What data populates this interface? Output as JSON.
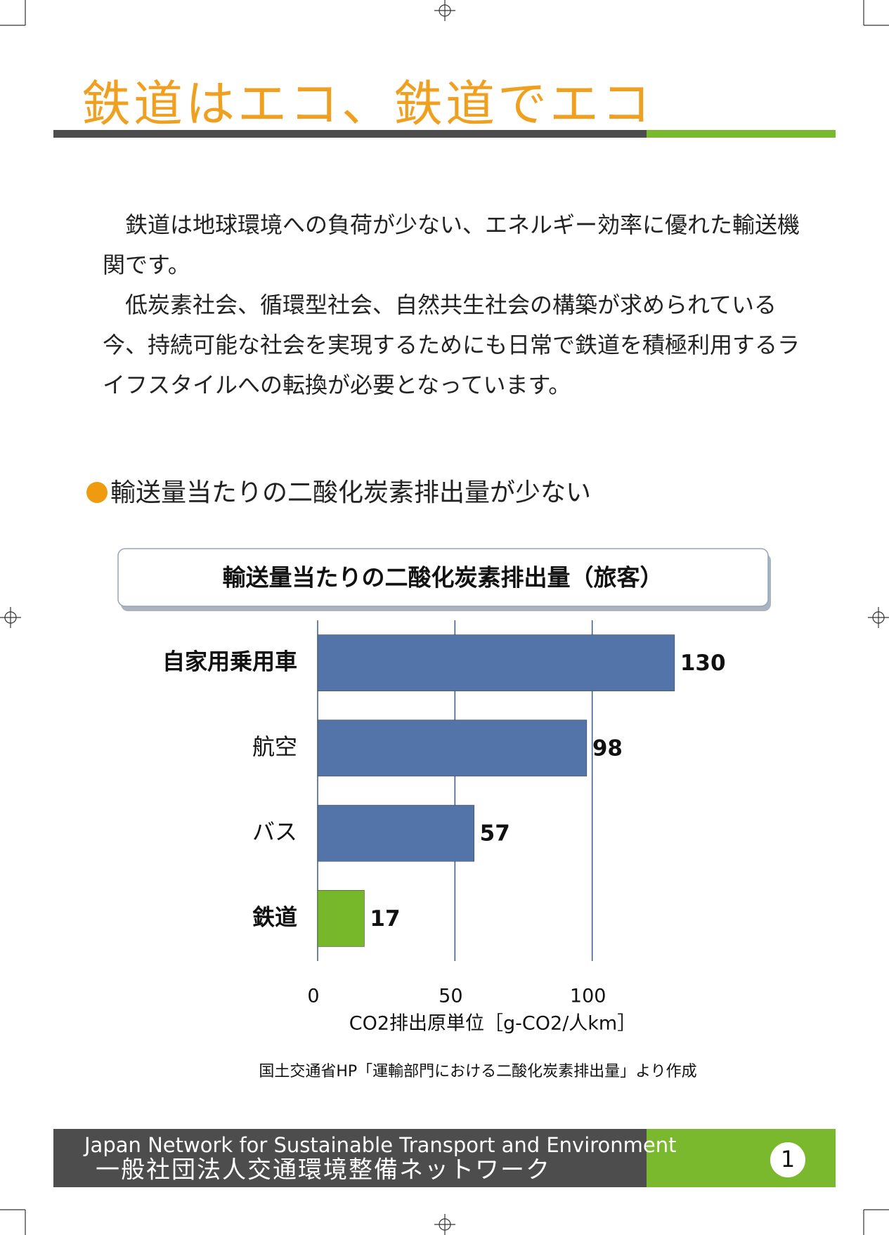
{
  "header": {
    "title": "鉄道はエコ、鉄道でエコ"
  },
  "body": {
    "paragraphs": [
      "鉄道は地球環境への負荷が少ない、エネルギー効率に優れた輸送機関です。",
      "低炭素社会、循環型社会、自然共生社会の構築が求められている今、持続可能な社会を実現するためにも日常で鉄道を積極利用するライフスタイルへの転換が必要となっています。"
    ],
    "heading": "輸送量当たりの二酸化炭素排出量が少ない"
  },
  "chart_data": {
    "type": "hbar",
    "title": "輸送量当たりの二酸化炭素排出量（旅客）",
    "categories": [
      "自家用乗用車",
      "航空",
      "バス",
      "鉄道"
    ],
    "values": [
      130,
      98,
      57,
      17
    ],
    "colors": [
      "#5274a8",
      "#5274a8",
      "#5274a8",
      "#77b82a"
    ],
    "xlabel": "CO2排出原単位［g-CO2/人km］",
    "xlim": [
      0,
      150
    ],
    "xticks": [
      0,
      50,
      100
    ],
    "grid": true
  },
  "source": "国土交通省HP「運輸部門における二酸化炭素排出量」より作成",
  "footer": {
    "org_en": "Japan Network for Sustainable Transport and Environment",
    "org_jp": "一般社団法人交通環境整備ネットワーク",
    "page": "1"
  }
}
